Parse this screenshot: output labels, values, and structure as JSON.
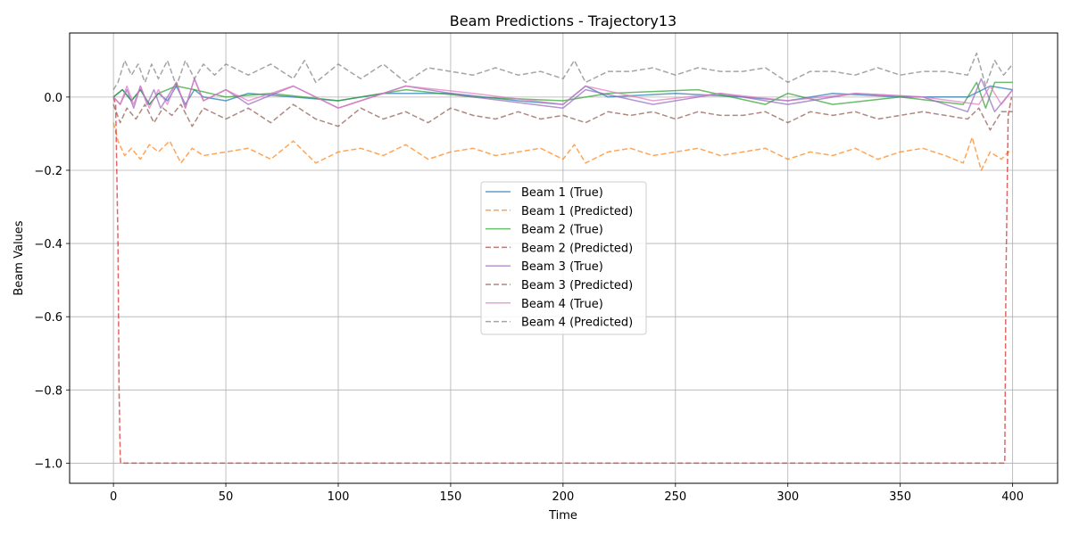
{
  "chart_data": {
    "type": "line",
    "title": "Beam Predictions - Trajectory13",
    "xlabel": "Time",
    "ylabel": "Beam Values",
    "xlim": [
      -19.5,
      420
    ],
    "ylim": [
      -1.055,
      0.175
    ],
    "xticks": [
      0,
      50,
      100,
      150,
      200,
      250,
      300,
      350,
      400
    ],
    "yticks": [
      -1.0,
      -0.8,
      -0.6,
      -0.4,
      -0.2,
      0.0
    ],
    "xtick_labels": [
      "0",
      "50",
      "100",
      "150",
      "200",
      "250",
      "300",
      "350",
      "400"
    ],
    "ytick_labels": [
      "−1.0",
      "−0.8",
      "−0.6",
      "−0.4",
      "−0.2",
      "0.0"
    ],
    "grid": true,
    "legend_position": "center",
    "series": [
      {
        "name": "Beam 1 (True)",
        "color": "#1f77b4",
        "style": "solid",
        "x": [
          0,
          4,
          8,
          12,
          16,
          20,
          24,
          28,
          32,
          36,
          40,
          50,
          60,
          80,
          100,
          120,
          150,
          180,
          200,
          210,
          220,
          250,
          280,
          300,
          320,
          350,
          380,
          390,
          400
        ],
        "y": [
          0.0,
          0.02,
          -0.01,
          0.02,
          -0.02,
          0.01,
          -0.01,
          0.03,
          -0.02,
          0.02,
          0.0,
          -0.01,
          0.01,
          0.0,
          -0.01,
          0.01,
          0.01,
          -0.01,
          -0.02,
          0.03,
          0.0,
          0.01,
          0.0,
          -0.01,
          0.01,
          0.0,
          0.0,
          0.03,
          0.02
        ]
      },
      {
        "name": "Beam 1 (Predicted)",
        "color": "#ff7f0e",
        "style": "dashed",
        "x": [
          0,
          2,
          5,
          8,
          12,
          16,
          20,
          25,
          30,
          35,
          40,
          50,
          60,
          70,
          80,
          90,
          100,
          110,
          120,
          130,
          140,
          150,
          160,
          170,
          180,
          190,
          200,
          205,
          210,
          220,
          230,
          240,
          250,
          260,
          270,
          280,
          290,
          300,
          310,
          320,
          330,
          340,
          350,
          360,
          370,
          378,
          382,
          386,
          390,
          395,
          398,
          400
        ],
        "y": [
          -0.07,
          -0.12,
          -0.16,
          -0.14,
          -0.17,
          -0.13,
          -0.15,
          -0.12,
          -0.18,
          -0.14,
          -0.16,
          -0.15,
          -0.14,
          -0.17,
          -0.12,
          -0.18,
          -0.15,
          -0.14,
          -0.16,
          -0.13,
          -0.17,
          -0.15,
          -0.14,
          -0.16,
          -0.15,
          -0.14,
          -0.17,
          -0.13,
          -0.18,
          -0.15,
          -0.14,
          -0.16,
          -0.15,
          -0.14,
          -0.16,
          -0.15,
          -0.14,
          -0.17,
          -0.15,
          -0.16,
          -0.14,
          -0.17,
          -0.15,
          -0.14,
          -0.16,
          -0.18,
          -0.11,
          -0.2,
          -0.15,
          -0.17,
          -0.15,
          -0.15
        ]
      },
      {
        "name": "Beam 2 (True)",
        "color": "#2ca02c",
        "style": "solid",
        "x": [
          0,
          4,
          8,
          12,
          16,
          20,
          28,
          36,
          50,
          70,
          100,
          130,
          160,
          200,
          220,
          260,
          290,
          300,
          320,
          350,
          378,
          384,
          388,
          392,
          400
        ],
        "y": [
          0.0,
          0.02,
          -0.01,
          0.02,
          -0.02,
          0.01,
          0.03,
          0.02,
          0.0,
          0.01,
          -0.01,
          0.02,
          0.0,
          -0.01,
          0.01,
          0.02,
          -0.02,
          0.01,
          -0.02,
          0.0,
          -0.02,
          0.04,
          -0.03,
          0.04,
          0.04
        ]
      },
      {
        "name": "Beam 2 (Predicted)",
        "color": "#d62728",
        "style": "dashed",
        "x": [
          0,
          1,
          2,
          2.5,
          3,
          3.2,
          396.5,
          397,
          398,
          399.5
        ],
        "y": [
          0.0,
          -0.02,
          -0.4,
          -0.8,
          -0.98,
          -1.0,
          -1.0,
          -0.5,
          -0.05,
          0.0
        ]
      },
      {
        "name": "Beam 3 (True)",
        "color": "#9467bd",
        "style": "solid",
        "x": [
          0,
          3,
          6,
          9,
          12,
          15,
          18,
          21,
          24,
          28,
          32,
          36,
          40,
          50,
          60,
          80,
          100,
          130,
          160,
          200,
          210,
          240,
          270,
          300,
          330,
          360,
          380,
          386,
          392,
          400
        ],
        "y": [
          0.0,
          -0.02,
          0.02,
          -0.03,
          0.03,
          -0.02,
          0.02,
          -0.03,
          0.0,
          0.04,
          -0.03,
          0.05,
          -0.01,
          0.02,
          -0.02,
          0.03,
          -0.03,
          0.03,
          0.0,
          -0.03,
          0.02,
          -0.02,
          0.01,
          -0.02,
          0.01,
          0.0,
          -0.04,
          0.05,
          -0.04,
          0.02
        ]
      },
      {
        "name": "Beam 3 (Predicted)",
        "color": "#8c564b",
        "style": "dashed",
        "x": [
          0,
          3,
          6,
          10,
          14,
          18,
          22,
          26,
          30,
          35,
          40,
          50,
          60,
          70,
          80,
          90,
          100,
          110,
          120,
          130,
          140,
          150,
          160,
          170,
          180,
          190,
          200,
          210,
          220,
          230,
          240,
          250,
          260,
          270,
          280,
          290,
          300,
          310,
          320,
          330,
          340,
          350,
          360,
          370,
          380,
          385,
          390,
          395,
          400
        ],
        "y": [
          -0.02,
          -0.07,
          -0.03,
          -0.06,
          -0.02,
          -0.07,
          -0.03,
          -0.05,
          -0.02,
          -0.08,
          -0.03,
          -0.06,
          -0.03,
          -0.07,
          -0.02,
          -0.06,
          -0.08,
          -0.03,
          -0.06,
          -0.04,
          -0.07,
          -0.03,
          -0.05,
          -0.06,
          -0.04,
          -0.06,
          -0.05,
          -0.07,
          -0.04,
          -0.05,
          -0.04,
          -0.06,
          -0.04,
          -0.05,
          -0.05,
          -0.04,
          -0.07,
          -0.04,
          -0.05,
          -0.04,
          -0.06,
          -0.05,
          -0.04,
          -0.05,
          -0.06,
          -0.03,
          -0.09,
          -0.04,
          -0.04
        ]
      },
      {
        "name": "Beam 4 (True)",
        "color": "#e377c2",
        "style": "solid",
        "x": [
          0,
          3,
          6,
          9,
          12,
          16,
          20,
          24,
          28,
          32,
          36,
          40,
          50,
          60,
          80,
          100,
          130,
          160,
          200,
          210,
          240,
          270,
          300,
          330,
          360,
          385,
          390,
          395,
          400
        ],
        "y": [
          0.0,
          -0.02,
          0.03,
          -0.02,
          0.03,
          -0.03,
          0.02,
          -0.02,
          0.04,
          -0.03,
          0.05,
          -0.01,
          0.02,
          -0.01,
          0.03,
          -0.03,
          0.03,
          0.01,
          -0.02,
          0.03,
          -0.01,
          0.01,
          -0.01,
          0.01,
          0.0,
          -0.02,
          0.03,
          -0.02,
          0.02
        ]
      },
      {
        "name": "Beam 4 (Predicted)",
        "color": "#7f7f7f",
        "style": "dashed",
        "x": [
          0,
          2,
          5,
          8,
          11,
          14,
          17,
          20,
          24,
          28,
          32,
          36,
          40,
          45,
          50,
          60,
          70,
          80,
          85,
          90,
          100,
          110,
          120,
          130,
          140,
          150,
          160,
          170,
          180,
          190,
          200,
          205,
          210,
          220,
          230,
          240,
          250,
          260,
          270,
          280,
          290,
          300,
          310,
          320,
          330,
          340,
          350,
          360,
          370,
          380,
          384,
          388,
          392,
          396,
          400
        ],
        "y": [
          0.02,
          0.04,
          0.1,
          0.06,
          0.09,
          0.04,
          0.09,
          0.05,
          0.1,
          0.03,
          0.1,
          0.05,
          0.09,
          0.06,
          0.09,
          0.06,
          0.09,
          0.05,
          0.1,
          0.04,
          0.09,
          0.05,
          0.09,
          0.04,
          0.08,
          0.07,
          0.06,
          0.08,
          0.06,
          0.07,
          0.05,
          0.1,
          0.04,
          0.07,
          0.07,
          0.08,
          0.06,
          0.08,
          0.07,
          0.07,
          0.08,
          0.04,
          0.07,
          0.07,
          0.06,
          0.08,
          0.06,
          0.07,
          0.07,
          0.06,
          0.12,
          0.03,
          0.1,
          0.06,
          0.09
        ]
      }
    ]
  }
}
